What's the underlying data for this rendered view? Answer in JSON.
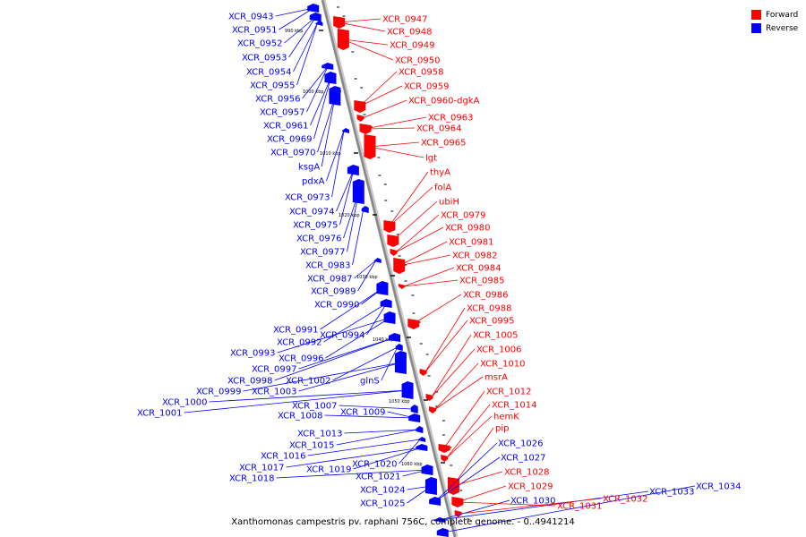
{
  "title": "Xanthomonas campestris pv. raphani 756C, complete genome. - 0..4941214",
  "legend": [
    {
      "label": "Forward",
      "color": "#ff0000"
    },
    {
      "label": "Reverse",
      "color": "#0000ff"
    }
  ],
  "colors": {
    "forward": "#ff0000",
    "reverse": "#0000ff",
    "backbone": "#888888"
  },
  "kbp_ticks": [
    "990 kbp",
    "1000 kbp",
    "1010 kbp",
    "1020 kbp",
    "1030 kbp",
    "1040 kbp",
    "1050 kbp",
    "1060 kbp"
  ],
  "genes_reverse": [
    "XCR_0943",
    "XCR_0951",
    "XCR_0952",
    "XCR_0953",
    "XCR_0954",
    "XCR_0955",
    "XCR_0956",
    "XCR_0957",
    "XCR_0961",
    "XCR_0969",
    "XCR_0970",
    "ksgA",
    "pdxA",
    "XCR_0973",
    "XCR_0974",
    "XCR_0975",
    "XCR_0976",
    "XCR_0977",
    "XCR_0983",
    "XCR_0987",
    "XCR_0989",
    "XCR_0990",
    "XCR_0991",
    "XCR_0994",
    "XCR_0992",
    "XCR_0993",
    "XCR_0996",
    "XCR_0997",
    "XCR_0998",
    "XCR_1002",
    "glnS",
    "XCR_0999",
    "XCR_1003",
    "XCR_1000",
    "XCR_1001",
    "XCR_1007",
    "XCR_1008",
    "XCR_1009",
    "XCR_1013",
    "XCR_1015",
    "XCR_1016",
    "XCR_1020",
    "XCR_1017",
    "XCR_1019",
    "XCR_1018",
    "XCR_1021",
    "XCR_1024",
    "XCR_1025",
    "XCR_1026",
    "XCR_1027",
    "XCR_1030",
    "XCR_1033",
    "XCR_1034"
  ],
  "genes_forward": [
    "XCR_0947",
    "XCR_0948",
    "XCR_0949",
    "XCR_0950",
    "XCR_0958",
    "XCR_0959",
    "XCR_0960-dgkA",
    "XCR_0963",
    "XCR_0964",
    "XCR_0965",
    "lgt",
    "thyA",
    "folA",
    "ubiH",
    "XCR_0979",
    "XCR_0980",
    "XCR_0981",
    "XCR_0982",
    "XCR_0984",
    "XCR_0985",
    "XCR_0986",
    "XCR_0988",
    "XCR_0995",
    "XCR_1005",
    "XCR_1006",
    "XCR_1010",
    "msrA",
    "XCR_1012",
    "XCR_1014",
    "hemK",
    "pip",
    "XCR_1028",
    "XCR_1029",
    "XCR_1031",
    "XCR_1032"
  ]
}
